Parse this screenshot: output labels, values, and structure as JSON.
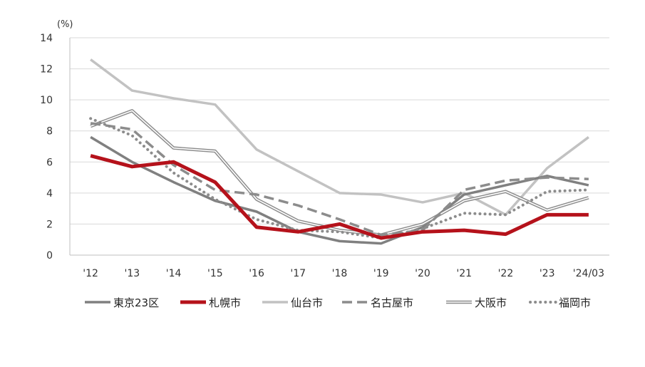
{
  "chart_data": {
    "type": "line",
    "unit_label": "(%)",
    "categories": [
      "'12",
      "'13",
      "'14",
      "'15",
      "'16",
      "'17",
      "'18",
      "'19",
      "'20",
      "'21",
      "'22",
      "'23",
      "'24/03"
    ],
    "ylim": [
      0,
      14
    ],
    "yticks": [
      0,
      2,
      4,
      6,
      8,
      10,
      12,
      14
    ],
    "grid": true,
    "legend_position": "bottom",
    "series": [
      {
        "name": "東京23区",
        "color": "#808080",
        "style": "solid-thick",
        "values": [
          7.6,
          6.0,
          4.7,
          3.5,
          2.8,
          1.5,
          0.9,
          0.75,
          1.8,
          3.9,
          4.5,
          5.1,
          4.5
        ]
      },
      {
        "name": "札幌市",
        "color": "#b5121b",
        "style": "solid-bold",
        "values": [
          6.4,
          5.7,
          6.0,
          4.7,
          1.8,
          1.5,
          2.0,
          1.1,
          1.5,
          1.6,
          1.35,
          2.6,
          2.6
        ]
      },
      {
        "name": "仙台市",
        "color": "#c2c2c2",
        "style": "solid-thick",
        "values": [
          12.6,
          10.6,
          10.1,
          9.7,
          6.8,
          5.4,
          4.0,
          3.9,
          3.4,
          4.0,
          2.6,
          5.6,
          7.6
        ]
      },
      {
        "name": "名古屋市",
        "color": "#8c8c8c",
        "style": "dashed",
        "values": [
          8.5,
          8.1,
          5.8,
          4.2,
          3.9,
          3.2,
          2.3,
          1.3,
          1.6,
          4.2,
          4.8,
          5.0,
          4.9
        ]
      },
      {
        "name": "大阪市",
        "color": "#8c8c8c",
        "style": "double",
        "values": [
          8.3,
          9.3,
          6.9,
          6.7,
          3.6,
          2.2,
          1.6,
          1.3,
          2.0,
          3.5,
          4.1,
          2.9,
          3.7
        ]
      },
      {
        "name": "福岡市",
        "color": "#8c8c8c",
        "style": "dotted",
        "values": [
          8.8,
          7.7,
          5.3,
          3.6,
          2.3,
          1.6,
          1.5,
          1.1,
          1.7,
          2.7,
          2.6,
          4.1,
          4.2
        ]
      }
    ]
  }
}
